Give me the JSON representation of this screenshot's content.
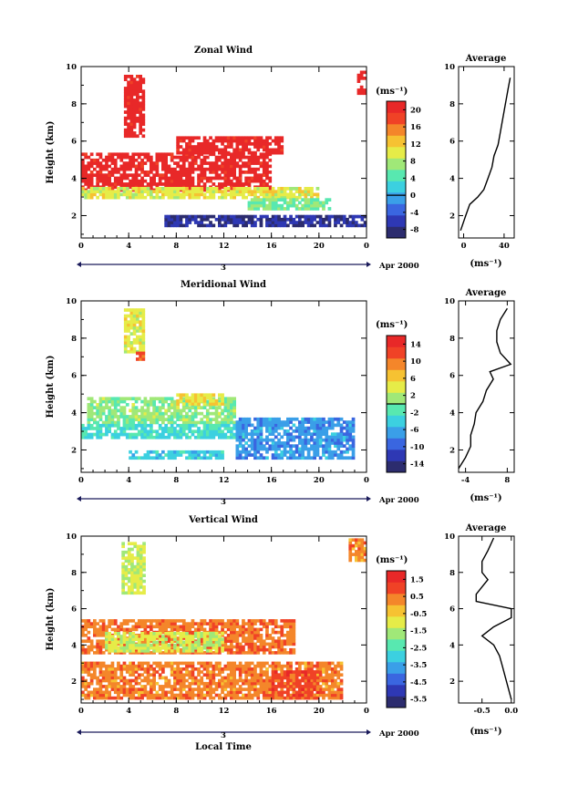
{
  "panels": [
    {
      "title": "Zonal Wind",
      "ylabel": "Height (km)",
      "unit": "(ms⁻¹)",
      "avg_title": "Average",
      "avg_unit": "(ms⁻¹)",
      "cbar_ticks": [
        "20",
        "16",
        "12",
        "8",
        "4",
        "0",
        "-4",
        "-8"
      ],
      "avg_xticks": [
        "0",
        "40"
      ],
      "date_num": "3",
      "date_label": "Apr 2000"
    },
    {
      "title": "Meridional Wind",
      "ylabel": "Height (km)",
      "unit": "(ms⁻¹)",
      "avg_title": "Average",
      "avg_unit": "(ms⁻¹)",
      "cbar_ticks": [
        "14",
        "10",
        "6",
        "2",
        "-2",
        "-6",
        "-10",
        "-14"
      ],
      "avg_xticks": [
        "-4",
        "8"
      ],
      "date_num": "3",
      "date_label": "Apr 2000"
    },
    {
      "title": "Vertical Wind",
      "ylabel": "Height (km)",
      "unit": "(ms⁻¹)",
      "avg_title": "Average",
      "avg_unit": "(ms⁻¹)",
      "cbar_ticks": [
        "1.5",
        "0.5",
        "-0.5",
        "-1.5",
        "-2.5",
        "-3.5",
        "-4.5",
        "-5.5"
      ],
      "avg_xticks": [
        "-0.5",
        "0.0"
      ],
      "date_num": "3",
      "date_label": "Apr 2000",
      "xlabel": "Local Time"
    }
  ],
  "colors": {
    "colormap": [
      "#2c2c6e",
      "#2e38b4",
      "#3a66e0",
      "#3a9fe8",
      "#3cd0e0",
      "#58e8b0",
      "#a0e878",
      "#e6ec48",
      "#f6c232",
      "#f4862a",
      "#f04226",
      "#e82828"
    ]
  },
  "chart_data": [
    {
      "type": "heatmap",
      "title": "Zonal Wind",
      "ylabel": "Height (km)",
      "x_ticks": [
        "0",
        "4",
        "8",
        "12",
        "16",
        "20",
        "0"
      ],
      "y_ticks": [
        "2",
        "4",
        "6",
        "8",
        "10"
      ],
      "xlim": [
        0,
        24
      ],
      "ylim": [
        0.8,
        10
      ],
      "colorbar": {
        "label": "(ms⁻¹)",
        "range": [
          -10,
          22
        ],
        "ticks": [
          20,
          16,
          12,
          8,
          4,
          0,
          -4,
          -8
        ],
        "zero_line": 0
      },
      "regions": [
        {
          "value": 21,
          "t": [
            3.6,
            5.2
          ],
          "h": [
            6.2,
            9.5
          ]
        },
        {
          "value": 21,
          "t": [
            0,
            16
          ],
          "h": [
            3.3,
            5.3
          ]
        },
        {
          "value": 21,
          "t": [
            8,
            17
          ],
          "h": [
            5.3,
            6.2
          ]
        },
        {
          "value": 21,
          "t": [
            23.2,
            23.8
          ],
          "h": [
            8.5,
            9.7
          ]
        },
        {
          "value": 10,
          "t": [
            0,
            20
          ],
          "h": [
            2.9,
            3.4
          ]
        },
        {
          "value": 6,
          "t": [
            14,
            21
          ],
          "h": [
            2.3,
            2.9
          ]
        },
        {
          "value": -7,
          "t": [
            7,
            24
          ],
          "h": [
            1.4,
            2.0
          ]
        }
      ],
      "average_profile": {
        "title": "Average",
        "xlabel": "(ms⁻¹)",
        "xlim": [
          -5,
          50
        ],
        "x_ticks": [
          0,
          40
        ],
        "height": [
          1.2,
          2.0,
          2.6,
          3.0,
          3.4,
          4.0,
          4.6,
          5.2,
          5.8,
          6.4,
          7.0,
          7.6,
          8.2,
          8.8,
          9.4
        ],
        "value": [
          -3,
          2,
          6,
          14,
          20,
          24,
          28,
          30,
          34,
          36,
          38,
          40,
          42,
          44,
          46
        ]
      }
    },
    {
      "type": "heatmap",
      "title": "Meridional Wind",
      "ylabel": "Height (km)",
      "x_ticks": [
        "0",
        "4",
        "8",
        "12",
        "16",
        "20",
        "0"
      ],
      "y_ticks": [
        "2",
        "4",
        "6",
        "8",
        "10"
      ],
      "xlim": [
        0,
        24
      ],
      "ylim": [
        0.8,
        10
      ],
      "colorbar": {
        "label": "(ms⁻¹)",
        "range": [
          -16,
          16
        ],
        "ticks": [
          14,
          10,
          6,
          2,
          -2,
          -6,
          -10,
          -14
        ],
        "zero_line": 0
      },
      "regions": [
        {
          "value": 4,
          "t": [
            3.6,
            5.2
          ],
          "h": [
            7.2,
            9.6
          ]
        },
        {
          "value": 12,
          "t": [
            4.6,
            5.2
          ],
          "h": [
            6.8,
            7.2
          ]
        },
        {
          "value": 1,
          "t": [
            0.5,
            13
          ],
          "h": [
            3.4,
            4.8
          ]
        },
        {
          "value": 5,
          "t": [
            8,
            12
          ],
          "h": [
            4.4,
            5.0
          ]
        },
        {
          "value": -3,
          "t": [
            0,
            14
          ],
          "h": [
            2.6,
            3.4
          ]
        },
        {
          "value": -7,
          "t": [
            13,
            23
          ],
          "h": [
            1.5,
            3.6
          ]
        },
        {
          "value": -4,
          "t": [
            4,
            12
          ],
          "h": [
            1.5,
            1.9
          ]
        }
      ],
      "average_profile": {
        "title": "Average",
        "xlabel": "(ms⁻¹)",
        "xlim": [
          -6,
          10
        ],
        "x_ticks": [
          -4,
          8
        ],
        "height": [
          1.0,
          1.6,
          2.2,
          2.8,
          3.4,
          4.0,
          4.6,
          5.2,
          5.8,
          6.2,
          6.6,
          7.2,
          7.8,
          8.4,
          9.0,
          9.6
        ],
        "value": [
          -6,
          -4,
          -2.5,
          -2.5,
          -1.5,
          -1,
          1,
          2,
          4,
          3,
          9,
          6,
          5,
          5,
          6,
          8
        ]
      }
    },
    {
      "type": "heatmap",
      "title": "Vertical Wind",
      "ylabel": "Height (km)",
      "xlabel": "Local Time",
      "x_ticks": [
        "0",
        "4",
        "8",
        "12",
        "16",
        "20",
        "0"
      ],
      "y_ticks": [
        "2",
        "4",
        "6",
        "8",
        "10"
      ],
      "xlim": [
        0,
        24
      ],
      "ylim": [
        0.8,
        10
      ],
      "colorbar": {
        "label": "(ms⁻¹)",
        "range": [
          -6,
          2
        ],
        "ticks": [
          1.5,
          0.5,
          -0.5,
          -1.5,
          -2.5,
          -3.5,
          -4.5,
          -5.5
        ]
      },
      "regions": [
        {
          "value": -1.2,
          "t": [
            3.4,
            5.4
          ],
          "h": [
            6.8,
            9.6
          ]
        },
        {
          "value": 0.5,
          "t": [
            0,
            18
          ],
          "h": [
            3.5,
            5.3
          ]
        },
        {
          "value": -1.2,
          "t": [
            2,
            12
          ],
          "h": [
            3.6,
            4.6
          ]
        },
        {
          "value": 0.4,
          "t": [
            0,
            22
          ],
          "h": [
            1.0,
            3.0
          ]
        },
        {
          "value": 1.0,
          "t": [
            16,
            20
          ],
          "h": [
            1.0,
            2.6
          ]
        },
        {
          "value": 0.3,
          "t": [
            22.5,
            24
          ],
          "h": [
            8.6,
            9.8
          ]
        }
      ],
      "average_profile": {
        "title": "Average",
        "xlabel": "(ms⁻¹)",
        "xlim": [
          -0.9,
          0.05
        ],
        "x_ticks": [
          -0.5,
          0.0
        ],
        "height": [
          1.0,
          1.6,
          2.2,
          2.8,
          3.4,
          4.0,
          4.5,
          5.0,
          5.5,
          6.0,
          6.4,
          6.8,
          7.2,
          7.6,
          8.0,
          8.6,
          9.2,
          9.9
        ],
        "value": [
          0,
          -0.05,
          -0.1,
          -0.15,
          -0.2,
          -0.3,
          -0.5,
          -0.3,
          0.0,
          0.0,
          -0.6,
          -0.6,
          -0.5,
          -0.4,
          -0.5,
          -0.5,
          -0.4,
          -0.3
        ]
      }
    }
  ]
}
